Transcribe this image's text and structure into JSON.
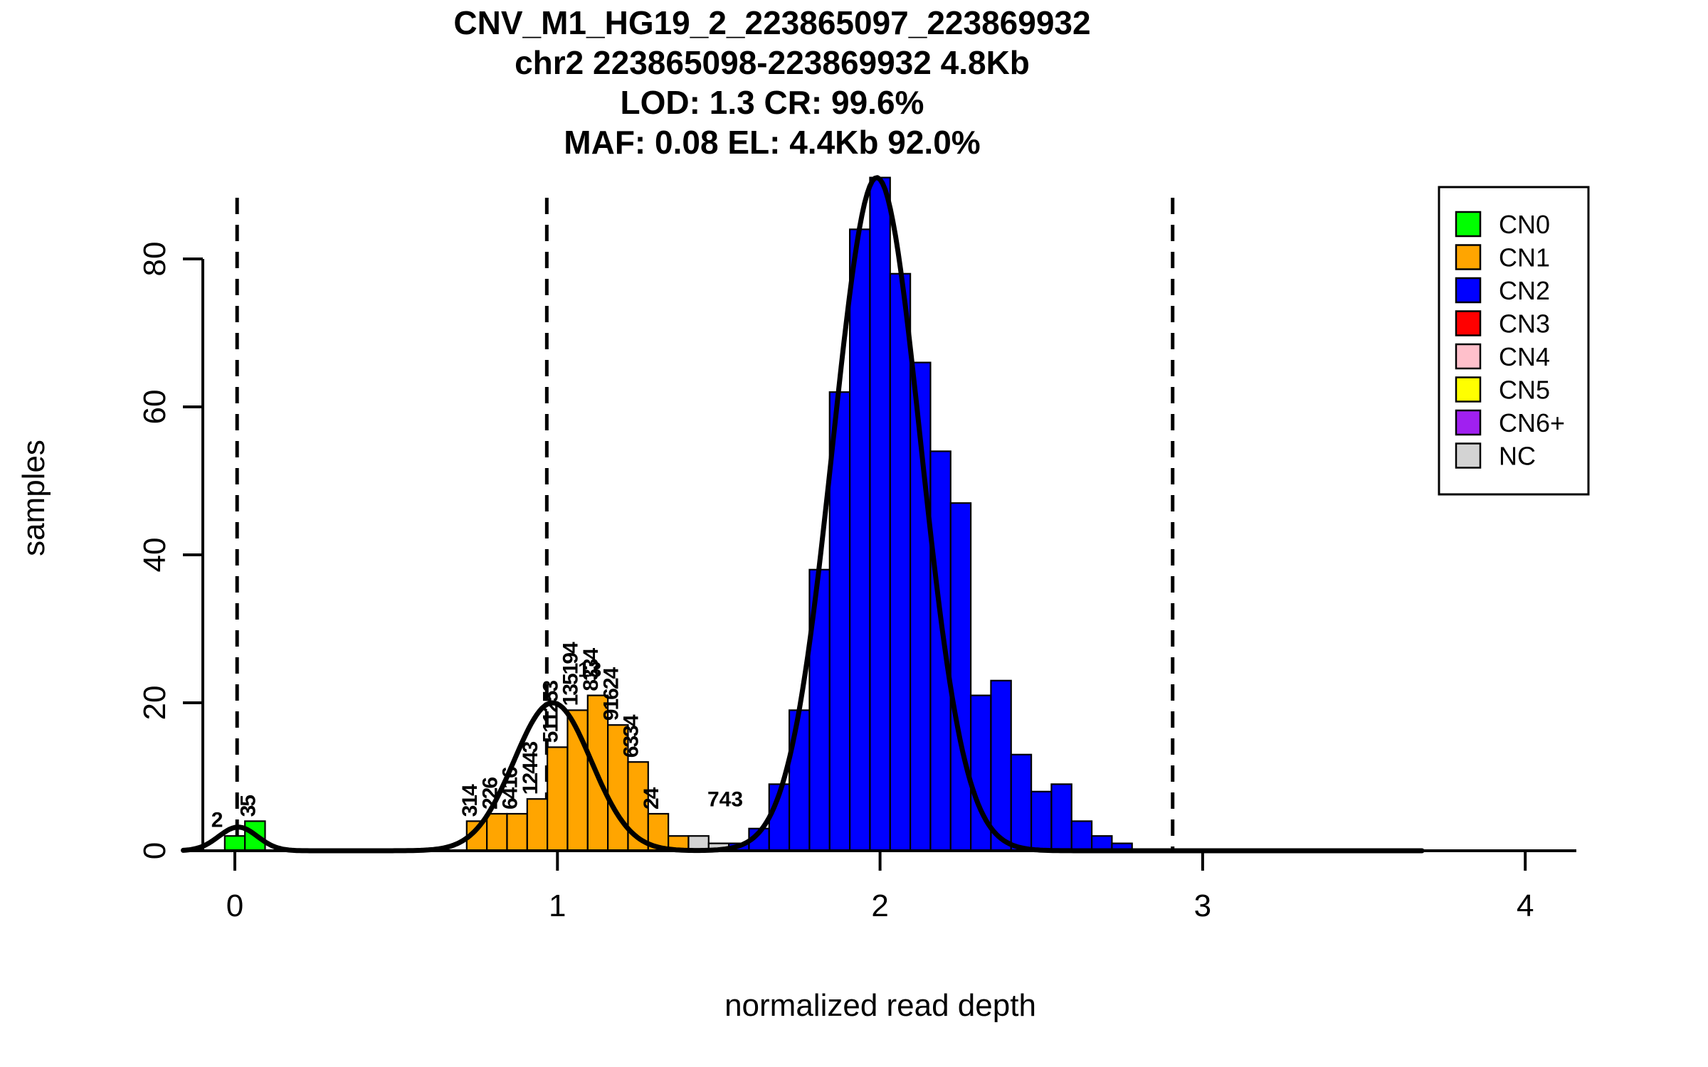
{
  "title_lines": [
    "CNV_M1_HG19_2_223865097_223869932",
    "chr2 223865098-223869932 4.8Kb",
    "LOD: 1.3 CR: 99.6%",
    "MAF: 0.08 EL: 4.4Kb 92.0%"
  ],
  "axes": {
    "xlabel": "normalized read depth",
    "ylabel": "samples"
  },
  "legend": {
    "items": [
      {
        "label": "CN0",
        "color": "#00FF00"
      },
      {
        "label": "CN1",
        "color": "#FFA500"
      },
      {
        "label": "CN2",
        "color": "#0000FF"
      },
      {
        "label": "CN3",
        "color": "#FF0000"
      },
      {
        "label": "CN4",
        "color": "#FFC0CB"
      },
      {
        "label": "CN5",
        "color": "#FFFF00"
      },
      {
        "label": "CN6+",
        "color": "#A020F0"
      },
      {
        "label": "NC",
        "color": "#D3D3D3"
      }
    ]
  },
  "chart_data": {
    "type": "bar",
    "title": "CNV_M1_HG19_2_223865097_223869932 / chr2 223865098-223869932 4.8Kb / LOD: 1.3 CR: 99.6% / MAF: 0.08 EL: 4.4Kb 92.0%",
    "xlabel": "normalized read depth",
    "ylabel": "samples",
    "xlim": [
      -0.16,
      4.16
    ],
    "ylim": [
      0,
      92
    ],
    "x_ticks": [
      0,
      1,
      2,
      3,
      4
    ],
    "y_ticks": [
      0,
      20,
      40,
      60,
      80
    ],
    "grid": false,
    "legend_position": "top-right",
    "bin_width": 0.0625,
    "bars": [
      {
        "x": -0.03125,
        "h": 2,
        "cn": "CN0"
      },
      {
        "x": 0.03125,
        "h": 4,
        "cn": "CN0"
      },
      {
        "x": 0.71875,
        "h": 4,
        "cn": "CN1"
      },
      {
        "x": 0.78125,
        "h": 5,
        "cn": "CN1"
      },
      {
        "x": 0.84375,
        "h": 5,
        "cn": "CN1"
      },
      {
        "x": 0.90625,
        "h": 7,
        "cn": "CN1"
      },
      {
        "x": 0.96875,
        "h": 14,
        "cn": "CN1"
      },
      {
        "x": 1.03125,
        "h": 19,
        "cn": "CN1"
      },
      {
        "x": 1.09375,
        "h": 21,
        "cn": "CN1"
      },
      {
        "x": 1.15625,
        "h": 17,
        "cn": "CN1"
      },
      {
        "x": 1.21875,
        "h": 12,
        "cn": "CN1"
      },
      {
        "x": 1.28125,
        "h": 5,
        "cn": "CN1"
      },
      {
        "x": 1.34375,
        "h": 2,
        "cn": "CN1"
      },
      {
        "x": 1.40625,
        "h": 2,
        "cn": "NC"
      },
      {
        "x": 1.46875,
        "h": 1,
        "cn": "NC"
      },
      {
        "x": 1.53125,
        "h": 1,
        "cn": "CN2"
      },
      {
        "x": 1.59375,
        "h": 3,
        "cn": "CN2"
      },
      {
        "x": 1.65625,
        "h": 9,
        "cn": "CN2"
      },
      {
        "x": 1.71875,
        "h": 19,
        "cn": "CN2"
      },
      {
        "x": 1.78125,
        "h": 38,
        "cn": "CN2"
      },
      {
        "x": 1.84375,
        "h": 62,
        "cn": "CN2"
      },
      {
        "x": 1.90625,
        "h": 84,
        "cn": "CN2"
      },
      {
        "x": 1.96875,
        "h": 91,
        "cn": "CN2"
      },
      {
        "x": 2.03125,
        "h": 78,
        "cn": "CN2"
      },
      {
        "x": 2.09375,
        "h": 66,
        "cn": "CN2"
      },
      {
        "x": 2.15625,
        "h": 54,
        "cn": "CN2"
      },
      {
        "x": 2.21875,
        "h": 47,
        "cn": "CN2"
      },
      {
        "x": 2.28125,
        "h": 21,
        "cn": "CN2"
      },
      {
        "x": 2.34375,
        "h": 23,
        "cn": "CN2"
      },
      {
        "x": 2.40625,
        "h": 13,
        "cn": "CN2"
      },
      {
        "x": 2.46875,
        "h": 8,
        "cn": "CN2"
      },
      {
        "x": 2.53125,
        "h": 9,
        "cn": "CN2"
      },
      {
        "x": 2.59375,
        "h": 4,
        "cn": "CN2"
      },
      {
        "x": 2.65625,
        "h": 2,
        "cn": "CN2"
      },
      {
        "x": 2.71875,
        "h": 1,
        "cn": "CN2"
      }
    ],
    "dashed_lines_x": [
      0.007,
      0.967,
      1.991,
      2.907
    ],
    "fit_curve": {
      "range": [
        -0.16,
        3.68
      ],
      "gaussians": [
        {
          "mu": 0.01,
          "sigma": 0.06,
          "amp": 3.2
        },
        {
          "mu": 0.985,
          "sigma": 0.12,
          "amp": 20.0
        },
        {
          "mu": 1.99,
          "sigma": 0.136,
          "amp": 91.0
        }
      ]
    },
    "bar_id_labels": {
      "vertical": [
        {
          "x": 0.0625,
          "y": 4,
          "text": "35"
        },
        {
          "x": 0.75,
          "y": 4,
          "text": "314"
        },
        {
          "x": 0.8125,
          "y": 5,
          "text": "226"
        },
        {
          "x": 0.875,
          "y": 5,
          "text": "6416"
        },
        {
          "x": 0.9375,
          "y": 7,
          "text": "12443"
        },
        {
          "x": 1.0,
          "y": 14,
          "text": "511253"
        },
        {
          "x": 1.0625,
          "y": 19,
          "text": "135194"
        },
        {
          "x": 1.125,
          "y": 21,
          "text": "8334"
        },
        {
          "x": 1.1875,
          "y": 17,
          "text": "91624"
        },
        {
          "x": 1.25,
          "y": 12,
          "text": "6334"
        },
        {
          "x": 1.3125,
          "y": 5,
          "text": "24"
        }
      ],
      "horizontal": [
        {
          "x": -0.055,
          "y": 3.2,
          "text": "2"
        },
        {
          "x": 1.1,
          "y": 23.5,
          "text": "13"
        },
        {
          "x": 1.52,
          "y": 6.0,
          "text": "743"
        }
      ]
    },
    "cn_colors": {
      "CN0": "#00FF00",
      "CN1": "#FFA500",
      "CN2": "#0000FF",
      "CN3": "#FF0000",
      "CN4": "#FFC0CB",
      "CN5": "#FFFF00",
      "CN6+": "#A020F0",
      "NC": "#D3D3D3"
    }
  }
}
